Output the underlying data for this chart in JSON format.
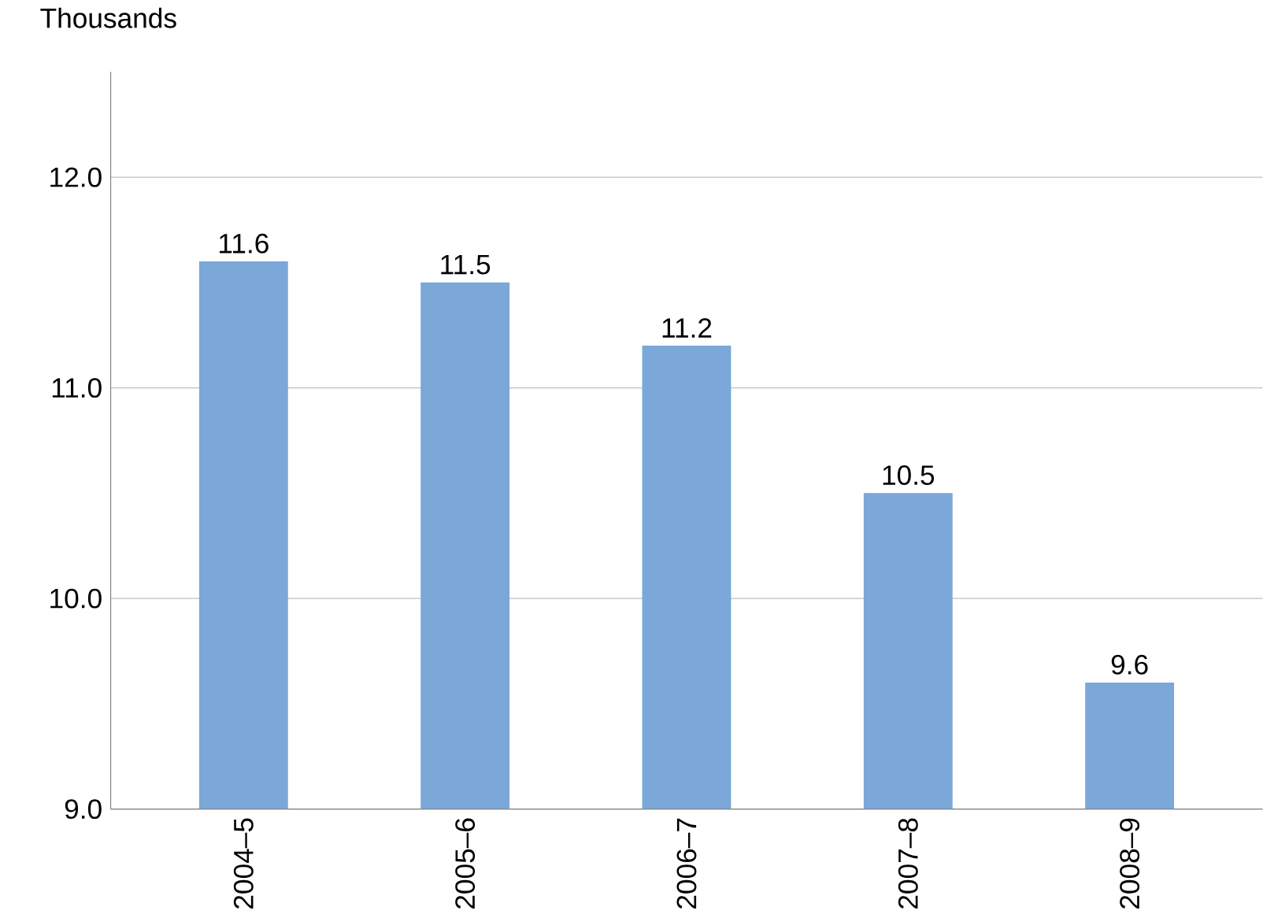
{
  "chart_data": {
    "type": "bar",
    "ylabel": "Thousands",
    "categories": [
      "2004–5",
      "2005–6",
      "2006–7",
      "2007–8",
      "2008–9"
    ],
    "values": [
      11.6,
      11.5,
      11.2,
      10.5,
      9.6
    ],
    "color": "#7ba7d9",
    "ylim": [
      9,
      12.5
    ],
    "yticks": [
      {
        "value": 9,
        "label": "9.0"
      },
      {
        "value": 10,
        "label": "10.0"
      },
      {
        "value": 11,
        "label": "11.0"
      },
      {
        "value": 12,
        "label": "12.0"
      }
    ],
    "grid": "y",
    "data_labels": true
  }
}
